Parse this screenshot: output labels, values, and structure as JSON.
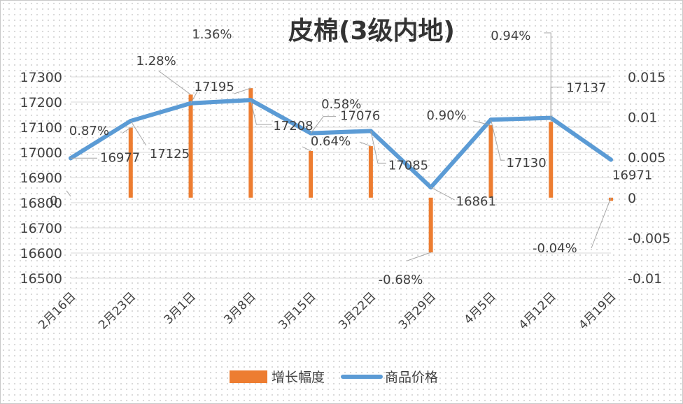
{
  "chart_data": {
    "type": "bar+line",
    "title": "皮棉(3级内地)",
    "categories": [
      "2月16日",
      "2月23日",
      "3月1日",
      "3月8日",
      "3月15日",
      "3月22日",
      "3月29日",
      "4月5日",
      "4月12日",
      "4月19日"
    ],
    "series": [
      {
        "name": "增长幅度",
        "type": "bar",
        "axis": "secondary",
        "color": "#ED7D31",
        "values": [
          0,
          0.0087,
          0.0128,
          0.0136,
          0.0058,
          0.0064,
          -0.0068,
          0.009,
          0.0094,
          -0.0004
        ],
        "labels": [
          "0",
          "0.87%",
          "1.28%",
          "1.36%",
          "0.58%",
          "0.64%",
          "-0.68%",
          "0.90%",
          "0.94%",
          "-0.04%"
        ]
      },
      {
        "name": "商品价格",
        "type": "line",
        "axis": "primary",
        "color": "#5B9BD5",
        "values": [
          16977,
          17125,
          17195,
          17208,
          17076,
          17085,
          16861,
          17130,
          17137,
          16971
        ],
        "labels": [
          "16977",
          "17125",
          "17195",
          "17208",
          "17076",
          "17085",
          "16861",
          "17130",
          "17137",
          "16971"
        ]
      }
    ],
    "y_primary": {
      "lim": [
        16500,
        17300
      ],
      "ticks": [
        "16500",
        "16600",
        "16700",
        "16800",
        "16900",
        "17000",
        "17100",
        "17200",
        "17300"
      ]
    },
    "y_secondary": {
      "lim": [
        -0.01,
        0.015
      ],
      "ticks": [
        "-0.01",
        "-0.005",
        "0",
        "0.005",
        "0.01",
        "0.015"
      ]
    },
    "grid": true,
    "legend": "bottom"
  }
}
